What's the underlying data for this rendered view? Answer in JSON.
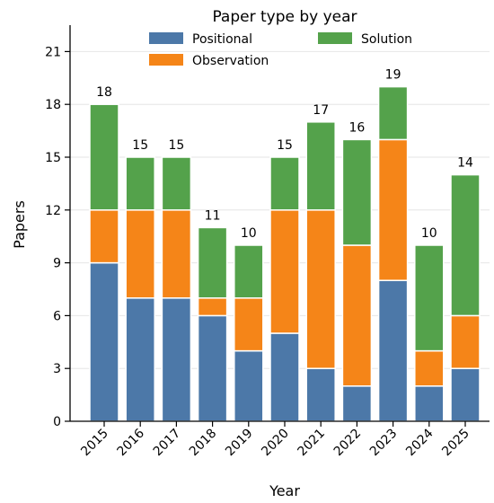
{
  "chart_data": {
    "type": "bar",
    "stacked": true,
    "title": "Paper type by year",
    "xlabel": "Year",
    "ylabel": "Papers",
    "ylim": [
      0,
      22.5
    ],
    "yticks": [
      0,
      3,
      6,
      9,
      12,
      15,
      18,
      21
    ],
    "grid": "horizontal",
    "legend_position": "top-center",
    "categories": [
      "2015",
      "2016",
      "2017",
      "2018",
      "2019",
      "2020",
      "2021",
      "2022",
      "2023",
      "2024",
      "2025"
    ],
    "series": [
      {
        "name": "Positional",
        "color": "#4c78a8",
        "values": [
          9,
          7,
          7,
          6,
          4,
          5,
          3,
          2,
          8,
          2,
          3
        ]
      },
      {
        "name": "Observation",
        "color": "#f58518",
        "values": [
          3,
          5,
          5,
          1,
          3,
          7,
          9,
          8,
          8,
          2,
          3
        ]
      },
      {
        "name": "Solution",
        "color": "#54a24b",
        "values": [
          6,
          3,
          3,
          4,
          3,
          3,
          5,
          6,
          3,
          6,
          8
        ]
      }
    ],
    "totals": [
      18,
      15,
      15,
      11,
      10,
      15,
      17,
      16,
      19,
      10,
      14
    ]
  }
}
